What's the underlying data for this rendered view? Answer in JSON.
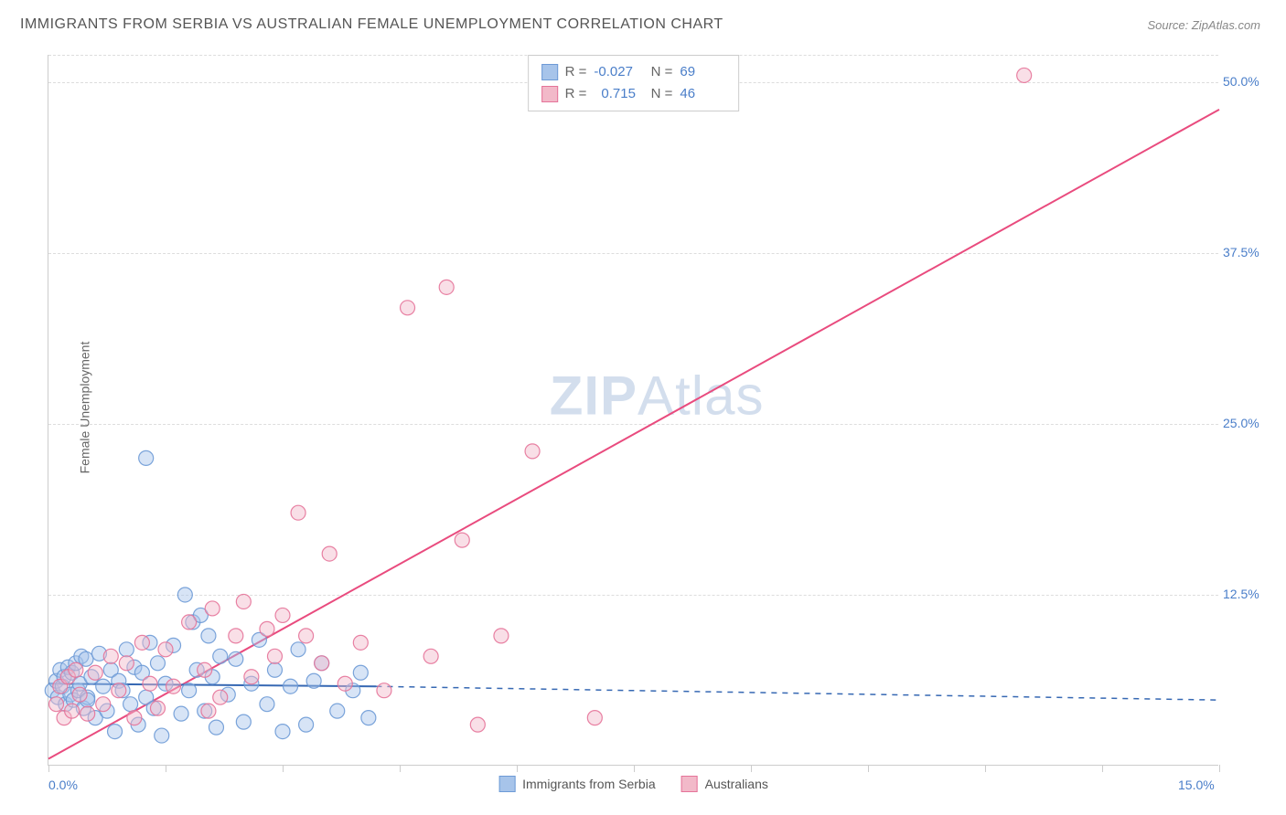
{
  "title": "IMMIGRANTS FROM SERBIA VS AUSTRALIAN FEMALE UNEMPLOYMENT CORRELATION CHART",
  "source": "Source: ZipAtlas.com",
  "ylabel": "Female Unemployment",
  "watermark_zip": "ZIP",
  "watermark_atlas": "Atlas",
  "chart": {
    "type": "scatter",
    "xlim": [
      0,
      15
    ],
    "ylim": [
      0,
      52
    ],
    "x_ticks": [
      0,
      1.5,
      3,
      4.5,
      6,
      7.5,
      9,
      10.5,
      12,
      13.5,
      15
    ],
    "x_tick_labels": {
      "0": "0.0%",
      "15": "15.0%"
    },
    "y_ticks": [
      12.5,
      25.0,
      37.5,
      50.0
    ],
    "y_tick_labels": [
      "12.5%",
      "25.0%",
      "37.5%",
      "50.0%"
    ],
    "background_color": "#ffffff",
    "grid_color": "#dddddd",
    "axis_color": "#cccccc",
    "tick_label_color": "#4a7ec9",
    "marker_radius": 8,
    "marker_fill_opacity": 0.45,
    "marker_stroke_opacity": 0.9,
    "marker_stroke_width": 1.2,
    "series": [
      {
        "name": "Immigrants from Serbia",
        "color_fill": "#a7c4ea",
        "color_stroke": "#6d9ad6",
        "r_value": "-0.027",
        "n_value": "69",
        "trend": {
          "x1": 0,
          "y1": 6.0,
          "x2": 4.2,
          "y2": 5.8,
          "solid_until_x": 4.2,
          "dash_to_x": 15,
          "dash_y": 4.8,
          "color": "#3668b3",
          "width": 2
        },
        "points": [
          [
            0.05,
            5.5
          ],
          [
            0.1,
            6.2
          ],
          [
            0.12,
            5.0
          ],
          [
            0.15,
            7.0
          ],
          [
            0.18,
            5.8
          ],
          [
            0.2,
            6.5
          ],
          [
            0.22,
            4.5
          ],
          [
            0.25,
            7.2
          ],
          [
            0.28,
            5.2
          ],
          [
            0.3,
            6.8
          ],
          [
            0.32,
            4.8
          ],
          [
            0.35,
            7.5
          ],
          [
            0.38,
            5.5
          ],
          [
            0.4,
            6.0
          ],
          [
            0.42,
            8.0
          ],
          [
            0.45,
            4.2
          ],
          [
            0.48,
            7.8
          ],
          [
            0.5,
            5.0
          ],
          [
            0.55,
            6.5
          ],
          [
            0.6,
            3.5
          ],
          [
            0.65,
            8.2
          ],
          [
            0.7,
            5.8
          ],
          [
            0.75,
            4.0
          ],
          [
            0.8,
            7.0
          ],
          [
            0.85,
            2.5
          ],
          [
            0.9,
            6.2
          ],
          [
            0.95,
            5.5
          ],
          [
            1.0,
            8.5
          ],
          [
            1.05,
            4.5
          ],
          [
            1.1,
            7.2
          ],
          [
            1.15,
            3.0
          ],
          [
            1.2,
            6.8
          ],
          [
            1.25,
            5.0
          ],
          [
            1.3,
            9.0
          ],
          [
            1.35,
            4.2
          ],
          [
            1.4,
            7.5
          ],
          [
            1.45,
            2.2
          ],
          [
            1.5,
            6.0
          ],
          [
            1.6,
            8.8
          ],
          [
            1.7,
            3.8
          ],
          [
            1.75,
            12.5
          ],
          [
            1.8,
            5.5
          ],
          [
            1.85,
            10.5
          ],
          [
            1.9,
            7.0
          ],
          [
            1.95,
            11.0
          ],
          [
            2.0,
            4.0
          ],
          [
            2.05,
            9.5
          ],
          [
            2.1,
            6.5
          ],
          [
            2.15,
            2.8
          ],
          [
            2.2,
            8.0
          ],
          [
            2.3,
            5.2
          ],
          [
            2.4,
            7.8
          ],
          [
            2.5,
            3.2
          ],
          [
            2.6,
            6.0
          ],
          [
            2.7,
            9.2
          ],
          [
            2.8,
            4.5
          ],
          [
            2.9,
            7.0
          ],
          [
            3.0,
            2.5
          ],
          [
            3.1,
            5.8
          ],
          [
            3.2,
            8.5
          ],
          [
            3.3,
            3.0
          ],
          [
            3.4,
            6.2
          ],
          [
            3.5,
            7.5
          ],
          [
            3.7,
            4.0
          ],
          [
            3.9,
            5.5
          ],
          [
            4.0,
            6.8
          ],
          [
            4.1,
            3.5
          ],
          [
            1.25,
            22.5
          ],
          [
            0.5,
            4.8
          ]
        ]
      },
      {
        "name": "Australians",
        "color_fill": "#f2b9c9",
        "color_stroke": "#e57399",
        "r_value": "0.715",
        "n_value": "46",
        "trend": {
          "x1": 0,
          "y1": 0.5,
          "x2": 15,
          "y2": 48.0,
          "color": "#e94b7e",
          "width": 2
        },
        "points": [
          [
            0.1,
            4.5
          ],
          [
            0.15,
            5.8
          ],
          [
            0.2,
            3.5
          ],
          [
            0.25,
            6.5
          ],
          [
            0.3,
            4.0
          ],
          [
            0.35,
            7.0
          ],
          [
            0.4,
            5.2
          ],
          [
            0.5,
            3.8
          ],
          [
            0.6,
            6.8
          ],
          [
            0.7,
            4.5
          ],
          [
            0.8,
            8.0
          ],
          [
            0.9,
            5.5
          ],
          [
            1.0,
            7.5
          ],
          [
            1.1,
            3.5
          ],
          [
            1.2,
            9.0
          ],
          [
            1.3,
            6.0
          ],
          [
            1.4,
            4.2
          ],
          [
            1.5,
            8.5
          ],
          [
            1.6,
            5.8
          ],
          [
            1.8,
            10.5
          ],
          [
            2.0,
            7.0
          ],
          [
            2.1,
            11.5
          ],
          [
            2.2,
            5.0
          ],
          [
            2.4,
            9.5
          ],
          [
            2.5,
            12.0
          ],
          [
            2.6,
            6.5
          ],
          [
            2.8,
            10.0
          ],
          [
            2.9,
            8.0
          ],
          [
            3.0,
            11.0
          ],
          [
            3.2,
            18.5
          ],
          [
            3.3,
            9.5
          ],
          [
            3.5,
            7.5
          ],
          [
            3.6,
            15.5
          ],
          [
            3.8,
            6.0
          ],
          [
            4.0,
            9.0
          ],
          [
            4.3,
            5.5
          ],
          [
            4.6,
            33.5
          ],
          [
            4.9,
            8.0
          ],
          [
            5.1,
            35.0
          ],
          [
            5.3,
            16.5
          ],
          [
            5.5,
            3.0
          ],
          [
            5.8,
            9.5
          ],
          [
            6.2,
            23.0
          ],
          [
            7.0,
            3.5
          ],
          [
            12.5,
            50.5
          ],
          [
            2.05,
            4.0
          ]
        ]
      }
    ],
    "legend_bottom": [
      {
        "label": "Immigrants from Serbia",
        "fill": "#a7c4ea",
        "stroke": "#6d9ad6"
      },
      {
        "label": "Australians",
        "fill": "#f2b9c9",
        "stroke": "#e57399"
      }
    ]
  }
}
